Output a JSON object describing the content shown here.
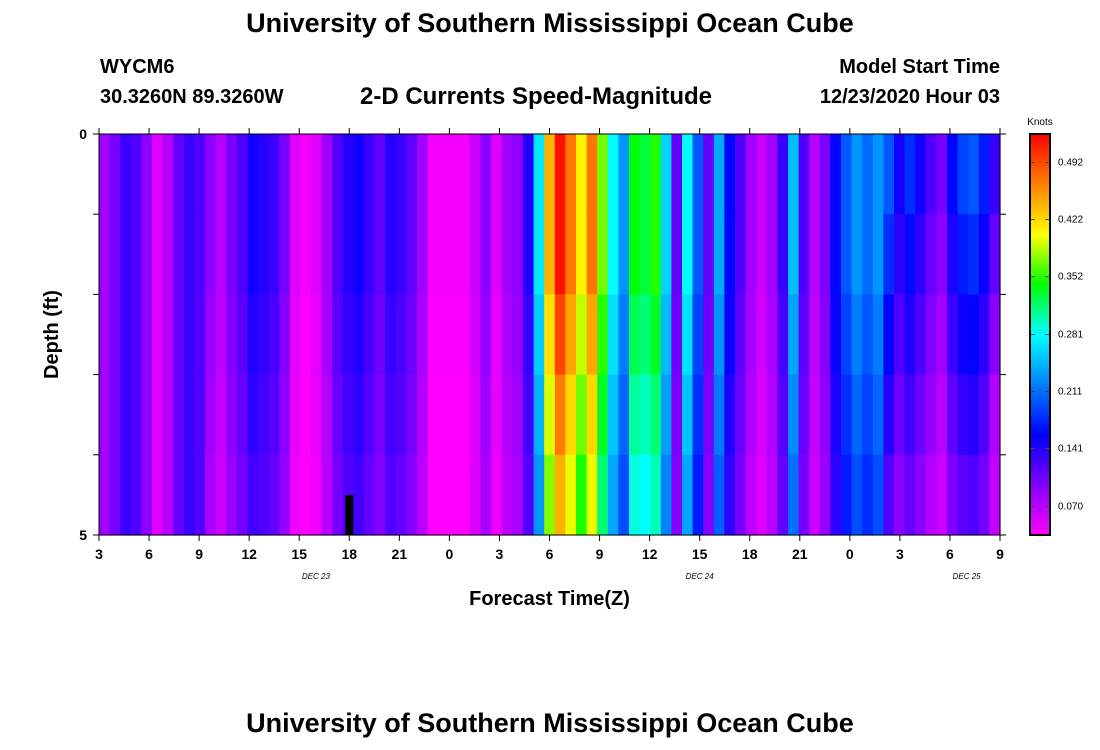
{
  "header": {
    "title": "University of Southern Mississippi Ocean Cube",
    "station": "WYCM6",
    "coords": "30.3260N 89.3260W",
    "chart_title": "2-D Currents Speed-Magnitude",
    "model_label": "Model Start Time",
    "model_date": "12/23/2020 Hour 03"
  },
  "footer": {
    "title": "University of Southern Mississippi Ocean Cube"
  },
  "chart_data": {
    "type": "heatmap",
    "title": "2-D Currents Speed-Magnitude",
    "xlabel": "Forecast Time(Z)",
    "ylabel": "Depth (ft)",
    "x_ticks": [
      "3",
      "6",
      "9",
      "12",
      "15",
      "18",
      "21",
      "0",
      "3",
      "6",
      "9",
      "12",
      "15",
      "18",
      "21",
      "0",
      "3",
      "6",
      "9"
    ],
    "x_start_hour_label": 3,
    "x_step_hours": 3,
    "date_labels": [
      {
        "text": "DEC 23",
        "at_hour": 13
      },
      {
        "text": "DEC 24",
        "at_hour": 36
      },
      {
        "text": "DEC 25",
        "at_hour": 52
      }
    ],
    "y_ticks": [
      "0",
      "5"
    ],
    "ylim": [
      0,
      5
    ],
    "y_inverted": true,
    "depth_levels": 5,
    "colorbar": {
      "unit": "Knots",
      "min": 0.035,
      "max": 0.527,
      "tick_values": [
        0.492,
        0.422,
        0.352,
        0.281,
        0.211,
        0.141,
        0.07
      ],
      "tick_labels": [
        "0.492",
        "0.422",
        "0.352",
        "0.281",
        "0.211",
        "0.141",
        "0.070"
      ],
      "colors": [
        "#ff00ff",
        "#8000ff",
        "#0000ff",
        "#0080ff",
        "#00ffff",
        "#00ff00",
        "#ffff00",
        "#ff8000",
        "#ff0000"
      ]
    },
    "marker": {
      "hour": 18,
      "depth_start": 4.5,
      "depth_end": 5.0,
      "color": "#000000"
    },
    "surface_speed": [
      0.08,
      0.1,
      0.13,
      0.12,
      0.09,
      0.05,
      0.07,
      0.11,
      0.13,
      0.12,
      0.09,
      0.07,
      0.1,
      0.12,
      0.15,
      0.14,
      0.13,
      0.1,
      0.05,
      0.04,
      0.05,
      0.08,
      0.12,
      0.14,
      0.15,
      0.13,
      0.11,
      0.14,
      0.13,
      0.11,
      0.08,
      0.04,
      0.04,
      0.04,
      0.04,
      0.06,
      0.09,
      0.05,
      0.08,
      0.09,
      0.14,
      0.27,
      0.44,
      0.52,
      0.47,
      0.41,
      0.47,
      0.37,
      0.28,
      0.23,
      0.34,
      0.33,
      0.35,
      0.26,
      0.11,
      0.28,
      0.2,
      0.11,
      0.24,
      0.16,
      0.12,
      0.08,
      0.06,
      0.08,
      0.13,
      0.25,
      0.12,
      0.07,
      0.1,
      0.16,
      0.2,
      0.23,
      0.21,
      0.23,
      0.2,
      0.15,
      0.18,
      0.15,
      0.12,
      0.1,
      0.16,
      0.19,
      0.2,
      0.17,
      0.13
    ],
    "depth_profile": [
      [
        1.0,
        1.0,
        1.0,
        1.0,
        1.0
      ],
      [
        1.0,
        1.0,
        0.95,
        0.9,
        0.85
      ],
      [
        1.0,
        1.0,
        0.95,
        0.9,
        0.85
      ],
      [
        1.0,
        0.9,
        0.8,
        0.7,
        0.6
      ],
      [
        1.0,
        0.85,
        0.7,
        0.55,
        0.5
      ]
    ],
    "depth_profile_start_hour": [
      0,
      6,
      36,
      47,
      53
    ]
  }
}
